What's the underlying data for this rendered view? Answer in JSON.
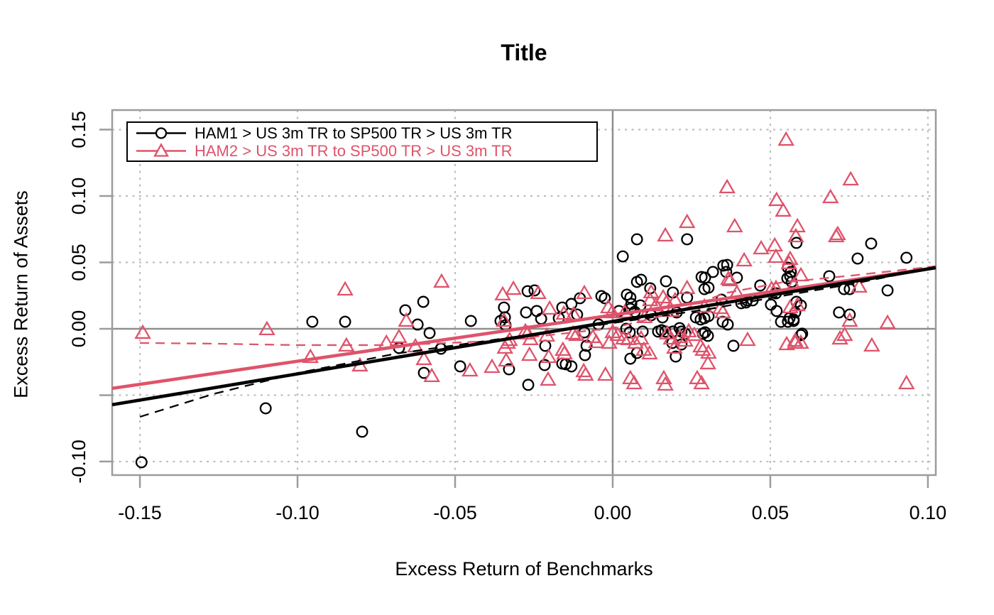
{
  "colors": {
    "series1": "#000000",
    "series2": "#DF536B",
    "grid": "#BEBEBE",
    "axis": "#9C9C9C",
    "zero_line": "#8F8F8F",
    "text": "#000000"
  },
  "legend": {
    "entries": [
      {
        "label": "HAM1 > US 3m TR to SP500 TR > US 3m TR",
        "color": "#000000",
        "marker": "circle"
      },
      {
        "label": "HAM2 > US 3m TR to SP500 TR > US 3m TR",
        "color": "#DF536B",
        "marker": "triangle"
      }
    ]
  },
  "chart_data": {
    "type": "scatter",
    "title": "Title",
    "xlabel": "Excess Return of Benchmarks",
    "ylabel": "Excess Return of Assets",
    "xlim": [
      -0.1588,
      0.1025
    ],
    "ylim": [
      -0.1102,
      0.1647
    ],
    "grid": "dotted gray at ticks, solid gray lines at x=0 and y=0",
    "legend_position": "topleft",
    "x_ticks": {
      "values": [
        -0.15,
        -0.1,
        -0.05,
        0.0,
        0.05,
        0.1
      ],
      "labels": [
        "-0.15",
        "-0.10",
        "-0.05",
        "0.00",
        "0.05",
        "0.10"
      ]
    },
    "y_ticks": {
      "values": [
        0.15,
        0.1,
        0.05,
        0.0,
        -0.05,
        -0.1
      ],
      "labels": [
        "0.15",
        "0.10",
        "0.05",
        "0.00",
        "",
        "-0.10"
      ]
    },
    "series": [
      {
        "name": "HAM1 > US 3m TR to SP500 TR > US 3m TR",
        "marker": "circle",
        "color": "#000000",
        "fit_line": {
          "x": [
            -0.1588,
            0.1025
          ],
          "y": [
            -0.0572,
            0.046
          ]
        },
        "smooth_line": {
          "x": [
            -0.15,
            -0.1268,
            -0.0998,
            -0.0687,
            -0.0367,
            0.0,
            0.0309,
            0.0534,
            0.0759,
            0.1025
          ],
          "y": [
            -0.0663,
            -0.0492,
            -0.0332,
            -0.0187,
            -0.008,
            0.0043,
            0.015,
            0.0246,
            0.0337,
            0.0465
          ]
        },
        "points": [
          [
            -0.1495,
            -0.1005
          ],
          [
            -0.1101,
            -0.0599
          ],
          [
            -0.0795,
            -0.0775
          ],
          [
            -0.0953,
            0.0053
          ],
          [
            -0.0849,
            0.0053
          ],
          [
            -0.0658,
            0.0139
          ],
          [
            -0.0601,
            0.0203
          ],
          [
            -0.0619,
            0.0032
          ],
          [
            -0.0581,
            -0.0032
          ],
          [
            -0.0678,
            -0.0144
          ],
          [
            -0.0545,
            -0.015
          ],
          [
            -0.0599,
            -0.0332
          ],
          [
            -0.045,
            0.0059
          ],
          [
            -0.0484,
            -0.0283
          ],
          [
            -0.0345,
            0.016
          ],
          [
            -0.0356,
            0.0059
          ],
          [
            -0.0342,
            0.0086
          ],
          [
            -0.034,
            0.0027
          ],
          [
            -0.0329,
            -0.0305
          ],
          [
            -0.027,
            0.0283
          ],
          [
            -0.0248,
            0.0289
          ],
          [
            -0.0275,
            0.0123
          ],
          [
            -0.0241,
            0.0134
          ],
          [
            -0.0227,
            0.0075
          ],
          [
            -0.0268,
            -0.0422
          ],
          [
            -0.0214,
            -0.0128
          ],
          [
            -0.0216,
            -0.0273
          ],
          [
            -0.016,
            0.016
          ],
          [
            -0.0171,
            0.008
          ],
          [
            -0.0131,
            0.0187
          ],
          [
            -0.0113,
            0.0107
          ],
          [
            -0.0104,
            0.023
          ],
          [
            -0.009,
            -0.0027
          ],
          [
            -0.0083,
            -0.0128
          ],
          [
            -0.0088,
            -0.0198
          ],
          [
            -0.016,
            -0.0262
          ],
          [
            -0.0149,
            -0.0267
          ],
          [
            -0.0131,
            -0.0283
          ],
          [
            -0.0036,
            0.0246
          ],
          [
            -0.0025,
            0.023
          ],
          [
            0.0045,
            0.0257
          ],
          [
            0.0077,
            0.0353
          ],
          [
            0.009,
            0.0369
          ],
          [
            0.0119,
            0.0305
          ],
          [
            0.0056,
            0.015
          ],
          [
            -0.0045,
            0.0032
          ],
          [
            0.0043,
            0.0
          ],
          [
            0.0054,
            -0.0027
          ],
          [
            0.0095,
            -0.0021
          ],
          [
            0.0144,
            -0.0021
          ],
          [
            0.0155,
            -0.0011
          ],
          [
            0.0167,
            -0.0021
          ],
          [
            0.0191,
            -0.0021
          ],
          [
            0.0212,
            0.0005
          ],
          [
            0.0218,
            -0.0021
          ],
          [
            0.023,
            -0.0037
          ],
          [
            0.0189,
            -0.0107
          ],
          [
            0.0218,
            -0.0118
          ],
          [
            0.0077,
            -0.0182
          ],
          [
            0.0056,
            -0.0225
          ],
          [
            0.02,
            -0.0209
          ],
          [
            0.0282,
            0.039
          ],
          [
            0.0291,
            0.0299
          ],
          [
            0.0304,
            0.031
          ],
          [
            0.0264,
            0.0086
          ],
          [
            0.0279,
            0.007
          ],
          [
            0.0291,
            0.008
          ],
          [
            0.0304,
            0.0096
          ],
          [
            0.0286,
            -0.0037
          ],
          [
            0.0293,
            -0.0027
          ],
          [
            0.0302,
            -0.0053
          ],
          [
            0.0077,
            0.0674
          ],
          [
            0.0236,
            0.0674
          ],
          [
            0.0032,
            0.0545
          ],
          [
            0.0169,
            0.0358
          ],
          [
            0.0191,
            0.0273
          ],
          [
            0.0236,
            0.0235
          ],
          [
            0.0293,
            0.0385
          ],
          [
            0.0318,
            0.0428
          ],
          [
            0.0351,
            0.0476
          ],
          [
            0.036,
            0.0428
          ],
          [
            0.0394,
            0.0385
          ],
          [
            0.0056,
            0.0235
          ],
          [
            0.0059,
            0.0187
          ],
          [
            0.0088,
            0.0176
          ],
          [
            0.002,
            0.0134
          ],
          [
            0.007,
            0.0128
          ],
          [
            0.0122,
            0.0102
          ],
          [
            0.0158,
            0.0086
          ],
          [
            0.0203,
            0.0123
          ],
          [
            0.0345,
            0.0219
          ],
          [
            0.0408,
            0.0193
          ],
          [
            0.0423,
            0.0198
          ],
          [
            0.0468,
            0.0326
          ],
          [
            0.0502,
            0.0182
          ],
          [
            0.052,
            0.0134
          ],
          [
            0.0554,
            0.038
          ],
          [
            0.0565,
            0.0428
          ],
          [
            0.0363,
            0.0481
          ],
          [
            0.0556,
            0.046
          ],
          [
            0.0568,
            0.0353
          ],
          [
            0.0426,
            0.0214
          ],
          [
            0.0444,
            0.0214
          ],
          [
            0.0583,
            0.0203
          ],
          [
            0.0518,
            0.0267
          ],
          [
            0.0583,
            0.0647
          ],
          [
            0.082,
            0.0642
          ],
          [
            0.0777,
            0.0529
          ],
          [
            0.0932,
            0.0535
          ],
          [
            0.0563,
            0.0396
          ],
          [
            0.0687,
            0.0396
          ],
          [
            0.0734,
            0.0299
          ],
          [
            0.0752,
            0.0299
          ],
          [
            0.0872,
            0.0289
          ],
          [
            0.0597,
            0.0176
          ],
          [
            0.0579,
            0.0123
          ],
          [
            0.0561,
            0.008
          ],
          [
            0.0574,
            0.007
          ],
          [
            0.0718,
            0.0123
          ],
          [
            0.0752,
            0.0107
          ],
          [
            0.0601,
            -0.0037
          ],
          [
            0.0365,
            0.0032
          ],
          [
            0.0349,
            0.0053
          ],
          [
            0.0534,
            0.0053
          ],
          [
            0.0556,
            0.0053
          ],
          [
            0.0574,
            0.0059
          ],
          [
            0.0597,
            -0.0048
          ],
          [
            0.0383,
            -0.0128
          ]
        ]
      },
      {
        "name": "HAM2 > US 3m TR to SP500 TR > US 3m TR",
        "marker": "triangle",
        "color": "#DF536B",
        "fit_line": {
          "x": [
            -0.1588,
            0.1025
          ],
          "y": [
            -0.0449,
            0.046
          ]
        },
        "smooth_line": {
          "x": [
            -0.15,
            -0.127,
            -0.1,
            -0.0687,
            -0.0367,
            0.0,
            0.02,
            0.0354,
            0.0534,
            0.0759,
            0.1025
          ],
          "y": [
            -0.0107,
            -0.0112,
            -0.0123,
            -0.0123,
            -0.0091,
            0.0005,
            0.0123,
            0.0267,
            0.0348,
            0.0401,
            0.0471
          ]
        },
        "points": [
          [
            -0.1491,
            -0.0032
          ],
          [
            -0.1097,
            -0.0005
          ],
          [
            -0.0959,
            -0.0214
          ],
          [
            -0.0845,
            -0.0128
          ],
          [
            -0.0802,
            -0.0278
          ],
          [
            -0.0718,
            -0.0107
          ],
          [
            -0.0849,
            0.0294
          ],
          [
            -0.0543,
            0.0353
          ],
          [
            -0.0655,
            0.0059
          ],
          [
            -0.0678,
            -0.0064
          ],
          [
            -0.0626,
            -0.0134
          ],
          [
            -0.0599,
            -0.023
          ],
          [
            -0.0574,
            -0.0358
          ],
          [
            -0.0453,
            -0.0316
          ],
          [
            -0.0349,
            0.0257
          ],
          [
            -0.0315,
            0.0299
          ],
          [
            -0.0236,
            0.0267
          ],
          [
            -0.02,
            0.015
          ],
          [
            -0.0342,
            -0.0144
          ],
          [
            -0.0327,
            -0.0086
          ],
          [
            -0.027,
            -0.0037
          ],
          [
            -0.0261,
            -0.008
          ],
          [
            -0.0209,
            -0.0053
          ],
          [
            -0.0203,
            -0.0214
          ],
          [
            -0.0264,
            -0.0198
          ],
          [
            -0.0338,
            -0.0241
          ],
          [
            -0.0383,
            -0.0289
          ],
          [
            -0.0155,
            0.0112
          ],
          [
            -0.0126,
            -0.0037
          ],
          [
            -0.0115,
            -0.0048
          ],
          [
            -0.0158,
            -0.016
          ],
          [
            -0.0153,
            -0.0187
          ],
          [
            -0.009,
            0.0267
          ],
          [
            -0.0092,
            -0.0321
          ],
          [
            -0.0086,
            -0.0348
          ],
          [
            -0.0205,
            -0.0385
          ],
          [
            -0.0345,
            0.0059
          ],
          [
            -0.0333,
            -0.0107
          ],
          [
            -0.0277,
            -0.0021
          ],
          [
            -0.0124,
            0.0107
          ],
          [
            -0.0063,
            -0.0064
          ],
          [
            -0.0052,
            -0.0102
          ],
          [
            -0.0011,
            -0.0107
          ],
          [
            0.0,
            -0.0027
          ],
          [
            0.0016,
            -0.0048
          ],
          [
            0.0034,
            -0.0075
          ],
          [
            0.005,
            -0.008
          ],
          [
            0.0072,
            -0.0107
          ],
          [
            0.009,
            -0.0075
          ],
          [
            0.0099,
            -0.016
          ],
          [
            0.0117,
            -0.0187
          ],
          [
            0.0122,
            0.0273
          ],
          [
            0.0173,
            -0.0037
          ],
          [
            0.0185,
            -0.0075
          ],
          [
            0.0196,
            -0.0144
          ],
          [
            0.0214,
            -0.0064
          ],
          [
            0.023,
            -0.0091
          ],
          [
            0.0241,
            -0.0021
          ],
          [
            0.0259,
            -0.0048
          ],
          [
            0.0279,
            -0.0134
          ],
          [
            0.0286,
            -0.016
          ],
          [
            0.0302,
            -0.0262
          ],
          [
            0.0268,
            -0.0374
          ],
          [
            0.0282,
            -0.0412
          ],
          [
            0.0162,
            -0.0374
          ],
          [
            0.0167,
            -0.0422
          ],
          [
            0.0056,
            -0.0374
          ],
          [
            0.0068,
            -0.0412
          ],
          [
            -0.0023,
            -0.0348
          ],
          [
            0.0167,
            0.0701
          ],
          [
            0.0417,
            0.0513
          ],
          [
            0.0471,
            0.0604
          ],
          [
            0.0514,
            0.0626
          ],
          [
            0.0518,
            0.054
          ],
          [
            0.0559,
            0.0492
          ],
          [
            0.0372,
            0.0364
          ],
          [
            0.0236,
            0.0305
          ],
          [
            0.0119,
            0.0214
          ],
          [
            0.016,
            0.0235
          ],
          [
            0.0171,
            0.0198
          ],
          [
            0.0187,
            0.0134
          ],
          [
            0.0198,
            0.0214
          ],
          [
            0.0291,
            0.0166
          ],
          [
            0.0342,
            0.0155
          ],
          [
            0.0349,
            0.0123
          ],
          [
            0.0394,
            0.0267
          ],
          [
            0.0504,
            0.0299
          ],
          [
            -0.0014,
            0.016
          ],
          [
            -0.0002,
            0.0123
          ],
          [
            0.0038,
            0.0123
          ],
          [
            0.0101,
            0.0086
          ],
          [
            0.0137,
            0.0176
          ],
          [
            0.0367,
            0.0374
          ],
          [
            0.0518,
            0.0305
          ],
          [
            0.0586,
            0.0176
          ],
          [
            0.055,
            0.1422
          ],
          [
            0.0363,
            0.1064
          ],
          [
            0.052,
            0.0968
          ],
          [
            0.0541,
            0.0888
          ],
          [
            0.0236,
            0.0802
          ],
          [
            0.0387,
            0.077
          ],
          [
            0.0586,
            0.077
          ],
          [
            0.0581,
            0.0695
          ],
          [
            0.0709,
            0.0695
          ],
          [
            0.0563,
            0.0524
          ],
          [
            0.0597,
            0.0401
          ],
          [
            0.0574,
            0.0326
          ],
          [
            0.0782,
            0.0316
          ],
          [
            0.0563,
            0.016
          ],
          [
            0.0752,
            0.0059
          ],
          [
            0.0872,
            0.0043
          ],
          [
            0.0721,
            -0.0075
          ],
          [
            0.0579,
            -0.0091
          ],
          [
            0.0736,
            -0.0048
          ],
          [
            0.0755,
            0.1123
          ],
          [
            0.0691,
            0.0989
          ],
          [
            0.0714,
            0.0711
          ],
          [
            0.0428,
            -0.0086
          ],
          [
            0.0552,
            -0.0118
          ],
          [
            0.0579,
            -0.0107
          ],
          [
            0.0597,
            -0.0107
          ],
          [
            0.0822,
            -0.0128
          ],
          [
            0.0932,
            -0.0412
          ],
          [
            0.0304,
            -0.0182
          ]
        ]
      }
    ]
  }
}
